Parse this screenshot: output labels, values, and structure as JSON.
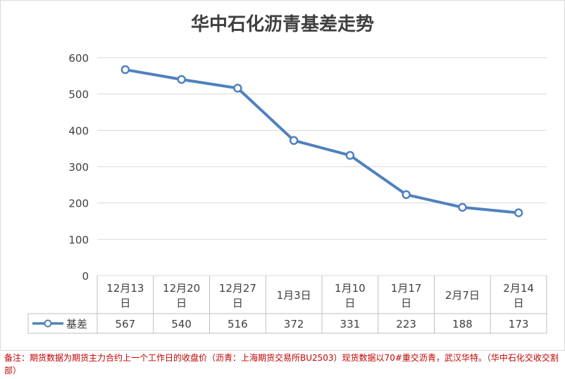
{
  "chart_data": {
    "type": "line",
    "title": "华中石化沥青基差走势",
    "categories": [
      "12月13日",
      "12月20日",
      "12月27日",
      "1月3日",
      "1月10日",
      "1月17日",
      "2月7日",
      "2月14日"
    ],
    "series": [
      {
        "name": "基差",
        "values": [
          567,
          540,
          516,
          372,
          331,
          223,
          188,
          173
        ],
        "color": "#4f81bd"
      }
    ],
    "y_ticks": [
      "600",
      "500",
      "400",
      "300",
      "200",
      "100",
      "0"
    ],
    "ylim": [
      0,
      600
    ],
    "grid": true,
    "legend": "data-table"
  },
  "note": "备注：期货数据为期货主力合约上一个工作日的收盘价（沥青：上海期货交易所BU2503）现货数据以70#重交沥青，武汉华特。（华中石化交收交割部）"
}
